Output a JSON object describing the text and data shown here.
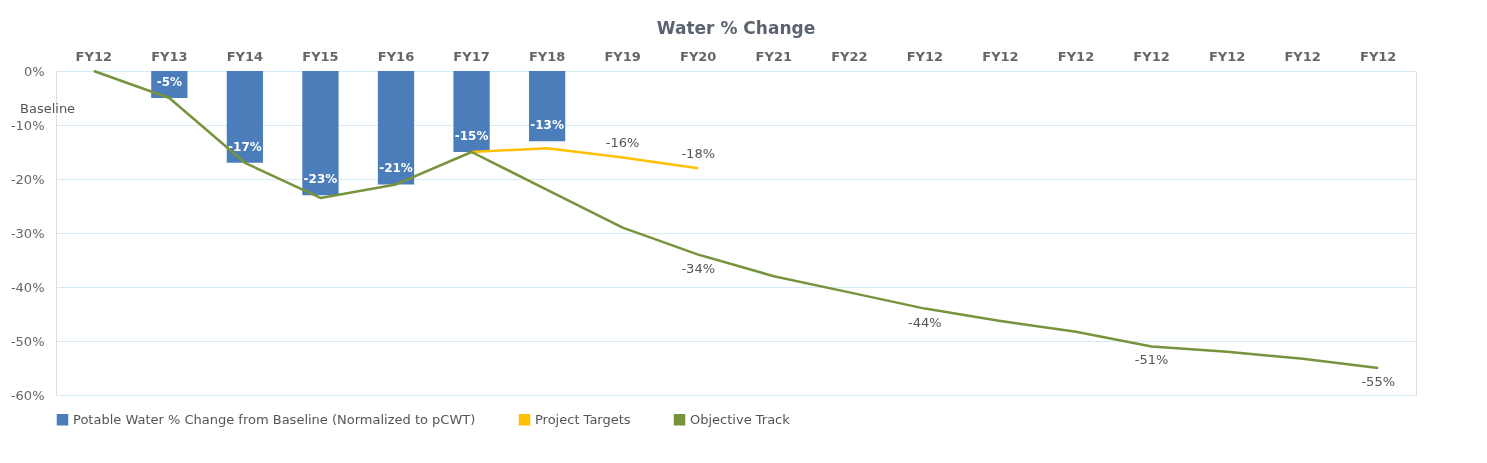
{
  "chart_data": {
    "type": "bar",
    "title": "Water % Change",
    "categories": [
      "FY12",
      "FY13",
      "FY14",
      "FY15",
      "FY16",
      "FY17",
      "FY18",
      "FY19",
      "FY20",
      "FY21",
      "FY22",
      "FY12",
      "FY12",
      "FY12",
      "FY12",
      "FY12",
      "FY12",
      "FY12"
    ],
    "series": [
      {
        "name": "Potable Water % Change from Baseline (Normalized to pCWT)",
        "color": "#4a7dba",
        "values": [
          null,
          -5,
          -17,
          -23,
          -21,
          -15,
          -13,
          null,
          null,
          null,
          null,
          null,
          null,
          null,
          null,
          null,
          null,
          null
        ],
        "value_labels": [
          null,
          "-5%",
          "-17%",
          "-23%",
          "-21%",
          "-15%",
          "-13%",
          null,
          null,
          null,
          null,
          null,
          null,
          null,
          null,
          null,
          null,
          null
        ]
      },
      {
        "type": "line",
        "name": "Project Targets",
        "color": "#ffc000",
        "values": [
          null,
          null,
          null,
          null,
          null,
          -15,
          -14.3,
          -16,
          -18,
          null,
          null,
          null,
          null,
          null,
          null,
          null,
          null,
          null
        ],
        "value_labels": [
          null,
          null,
          null,
          null,
          null,
          null,
          null,
          "-16%",
          "-18%",
          null,
          null,
          null,
          null,
          null,
          null,
          null,
          null,
          null
        ]
      },
      {
        "type": "line",
        "name": "Objective Track",
        "color": "#77933c",
        "values": [
          0,
          -5,
          -17,
          -23.5,
          -21,
          -15,
          -22,
          -29,
          -34,
          -38,
          -41,
          -44,
          -46.3,
          -48.3,
          -51,
          -52,
          -53.3,
          -55
        ],
        "value_labels": [
          null,
          null,
          null,
          null,
          null,
          null,
          null,
          null,
          "-34%",
          null,
          null,
          "-44%",
          null,
          null,
          "-51%",
          null,
          null,
          "-55%"
        ]
      }
    ],
    "ylim": [
      -60,
      0
    ],
    "yticks": [
      {
        "value": 0,
        "label": "0%"
      },
      {
        "value": -10,
        "label": "-10%"
      },
      {
        "value": -20,
        "label": "-20%"
      },
      {
        "value": -30,
        "label": "-30%"
      },
      {
        "value": -40,
        "label": "-40%"
      },
      {
        "value": -50,
        "label": "-50%"
      },
      {
        "value": -60,
        "label": "-60%"
      }
    ],
    "grid": "y",
    "legend": "bottom",
    "annotations": [
      "Baseline"
    ]
  }
}
